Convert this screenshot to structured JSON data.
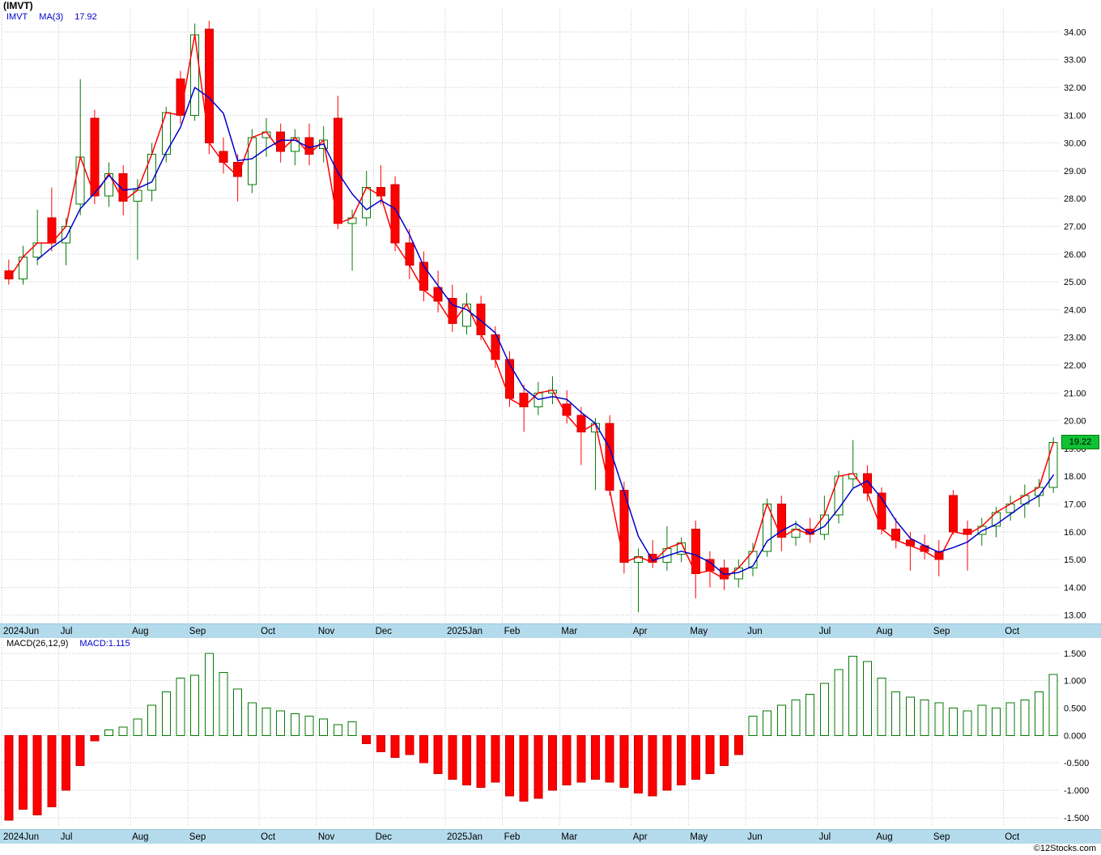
{
  "title": "(IMVT)",
  "legend": {
    "symbol": "IMVT",
    "ma_label": "MA(3)",
    "ma_value": "17.92"
  },
  "macd_legend": {
    "label": "MACD(26,12,9)",
    "value": "MACD:1.115"
  },
  "price_tag": {
    "value": "19.22"
  },
  "watermark": "©12Stocks.com",
  "colors": {
    "up": "#067a06",
    "down": "#fe0000",
    "down_border": "#cc0000",
    "price_line": "#ff0000",
    "ma_line": "#0000cc",
    "grid": "#c6c6c6",
    "axis_text": "#000000",
    "band_bg": "#b4dbec",
    "tag_bg": "#0fc135"
  },
  "chart_data": [
    {
      "type": "candlestick",
      "name": "IMVT",
      "title": "(IMVT)",
      "overlays": [
        {
          "label": "MA(3)",
          "value": 17.92,
          "color": "#0000cc"
        },
        {
          "label": "price",
          "color": "#ff0000"
        }
      ],
      "ylim": [
        12.7,
        34.8
      ],
      "y_ticks": [
        34,
        33,
        32,
        31,
        30,
        29,
        28,
        27,
        26,
        25,
        24,
        23,
        22,
        21,
        20,
        19,
        18,
        17,
        16,
        15,
        14,
        13
      ],
      "last_price": 19.22,
      "months": [
        {
          "label": "2024Jun",
          "index": 0
        },
        {
          "label": "Jul",
          "index": 4
        },
        {
          "label": "Aug",
          "index": 9
        },
        {
          "label": "Sep",
          "index": 13
        },
        {
          "label": "Oct",
          "index": 18
        },
        {
          "label": "Nov",
          "index": 22
        },
        {
          "label": "Dec",
          "index": 26
        },
        {
          "label": "2025Jan",
          "index": 31
        },
        {
          "label": "Feb",
          "index": 35
        },
        {
          "label": "Mar",
          "index": 39
        },
        {
          "label": "Apr",
          "index": 44
        },
        {
          "label": "May",
          "index": 48
        },
        {
          "label": "Jun",
          "index": 52
        },
        {
          "label": "Jul",
          "index": 57
        },
        {
          "label": "Aug",
          "index": 61
        },
        {
          "label": "Sep",
          "index": 65
        },
        {
          "label": "Oct",
          "index": 70
        }
      ],
      "candles": [
        [
          25.4,
          25.8,
          24.9,
          25.1
        ],
        [
          25.1,
          26.3,
          24.9,
          25.9
        ],
        [
          25.9,
          27.6,
          25.6,
          26.4
        ],
        [
          27.3,
          28.4,
          26.1,
          26.4
        ],
        [
          26.4,
          27.3,
          25.6,
          27.0
        ],
        [
          27.8,
          32.3,
          27.4,
          29.5
        ],
        [
          30.9,
          31.2,
          27.8,
          28.1
        ],
        [
          28.1,
          29.3,
          27.7,
          28.9
        ],
        [
          28.9,
          29.2,
          27.4,
          27.9
        ],
        [
          27.9,
          28.7,
          25.8,
          28.3
        ],
        [
          28.3,
          30.0,
          27.9,
          29.6
        ],
        [
          29.6,
          31.3,
          29.3,
          31.1
        ],
        [
          32.3,
          32.6,
          30.7,
          31.0
        ],
        [
          31.0,
          34.3,
          30.8,
          33.9
        ],
        [
          34.1,
          34.4,
          29.6,
          30.0
        ],
        [
          29.7,
          30.2,
          28.9,
          29.3
        ],
        [
          29.3,
          29.6,
          27.9,
          28.8
        ],
        [
          28.5,
          30.5,
          28.2,
          30.2
        ],
        [
          30.2,
          30.9,
          29.5,
          30.4
        ],
        [
          30.4,
          30.7,
          29.3,
          29.7
        ],
        [
          29.7,
          30.5,
          29.2,
          30.2
        ],
        [
          30.2,
          30.7,
          29.2,
          29.6
        ],
        [
          29.8,
          30.6,
          29.3,
          30.1
        ],
        [
          30.9,
          31.7,
          26.9,
          27.1
        ],
        [
          27.1,
          27.6,
          25.4,
          27.3
        ],
        [
          27.3,
          29.0,
          27.0,
          28.4
        ],
        [
          28.4,
          29.2,
          27.8,
          28.1
        ],
        [
          28.5,
          28.8,
          26.1,
          26.4
        ],
        [
          26.4,
          26.9,
          25.1,
          25.6
        ],
        [
          25.7,
          26.1,
          24.3,
          24.7
        ],
        [
          24.8,
          25.4,
          23.9,
          24.3
        ],
        [
          24.4,
          24.9,
          23.2,
          23.5
        ],
        [
          23.4,
          24.6,
          23.1,
          24.2
        ],
        [
          24.2,
          24.5,
          22.9,
          23.1
        ],
        [
          23.1,
          23.4,
          21.9,
          22.2
        ],
        [
          22.2,
          22.5,
          20.5,
          20.8
        ],
        [
          21.0,
          21.3,
          19.6,
          20.5
        ],
        [
          20.5,
          21.4,
          20.2,
          21.0
        ],
        [
          21.0,
          21.6,
          20.6,
          21.1
        ],
        [
          20.6,
          21.1,
          19.9,
          20.2
        ],
        [
          20.2,
          20.5,
          18.4,
          19.6
        ],
        [
          19.6,
          20.1,
          17.5,
          19.9
        ],
        [
          19.9,
          20.2,
          17.3,
          17.5
        ],
        [
          17.5,
          17.8,
          14.5,
          14.9
        ],
        [
          14.9,
          15.4,
          13.1,
          15.1
        ],
        [
          15.2,
          15.7,
          14.7,
          14.9
        ],
        [
          14.9,
          16.2,
          14.6,
          15.4
        ],
        [
          15.2,
          15.8,
          14.9,
          15.6
        ],
        [
          16.1,
          16.4,
          13.6,
          14.5
        ],
        [
          15.0,
          15.3,
          14.0,
          14.6
        ],
        [
          14.7,
          15.0,
          13.9,
          14.3
        ],
        [
          14.3,
          15.0,
          14.0,
          14.7
        ],
        [
          14.7,
          15.6,
          14.4,
          15.3
        ],
        [
          15.3,
          17.2,
          15.1,
          17.0
        ],
        [
          17.0,
          17.3,
          15.3,
          15.8
        ],
        [
          15.8,
          16.4,
          15.5,
          16.1
        ],
        [
          16.1,
          16.5,
          15.6,
          15.9
        ],
        [
          15.9,
          17.3,
          15.7,
          16.6
        ],
        [
          16.6,
          18.2,
          16.3,
          18.0
        ],
        [
          17.9,
          19.3,
          17.6,
          18.1
        ],
        [
          18.1,
          18.4,
          17.1,
          17.4
        ],
        [
          17.4,
          17.6,
          15.9,
          16.1
        ],
        [
          16.1,
          16.5,
          15.4,
          15.7
        ],
        [
          15.7,
          16.0,
          14.6,
          15.5
        ],
        [
          15.5,
          15.9,
          15.0,
          15.3
        ],
        [
          15.3,
          15.7,
          14.4,
          15.0
        ],
        [
          17.3,
          17.5,
          15.9,
          16.0
        ],
        [
          16.1,
          16.4,
          14.6,
          15.9
        ],
        [
          15.9,
          16.5,
          15.5,
          16.2
        ],
        [
          16.2,
          16.9,
          15.8,
          16.7
        ],
        [
          16.7,
          17.3,
          16.4,
          17.0
        ],
        [
          17.0,
          17.7,
          16.5,
          17.3
        ],
        [
          17.3,
          17.9,
          16.9,
          17.6
        ],
        [
          17.6,
          19.4,
          17.4,
          19.22
        ]
      ]
    },
    {
      "type": "bar",
      "title": "MACD(26,12,9)",
      "current_value": 1.115,
      "ylim": [
        -1.65,
        1.75
      ],
      "y_ticks": [
        1.5,
        1.0,
        0.5,
        0.0,
        -0.5,
        -1.0,
        -1.5
      ],
      "values": [
        -1.55,
        -1.35,
        -1.45,
        -1.3,
        -1.0,
        -0.55,
        -0.1,
        0.1,
        0.15,
        0.3,
        0.55,
        0.8,
        1.05,
        1.1,
        1.5,
        1.15,
        0.85,
        0.6,
        0.5,
        0.45,
        0.4,
        0.35,
        0.3,
        0.2,
        0.25,
        -0.15,
        -0.3,
        -0.4,
        -0.35,
        -0.5,
        -0.7,
        -0.8,
        -0.9,
        -0.95,
        -0.85,
        -1.1,
        -1.2,
        -1.15,
        -1.0,
        -0.9,
        -0.85,
        -0.8,
        -0.85,
        -0.95,
        -1.05,
        -1.1,
        -1.0,
        -0.9,
        -0.8,
        -0.7,
        -0.55,
        -0.35,
        0.35,
        0.45,
        0.55,
        0.65,
        0.75,
        0.95,
        1.2,
        1.45,
        1.35,
        1.05,
        0.8,
        0.7,
        0.65,
        0.6,
        0.5,
        0.45,
        0.55,
        0.5,
        0.6,
        0.65,
        0.8,
        1.115
      ]
    }
  ]
}
